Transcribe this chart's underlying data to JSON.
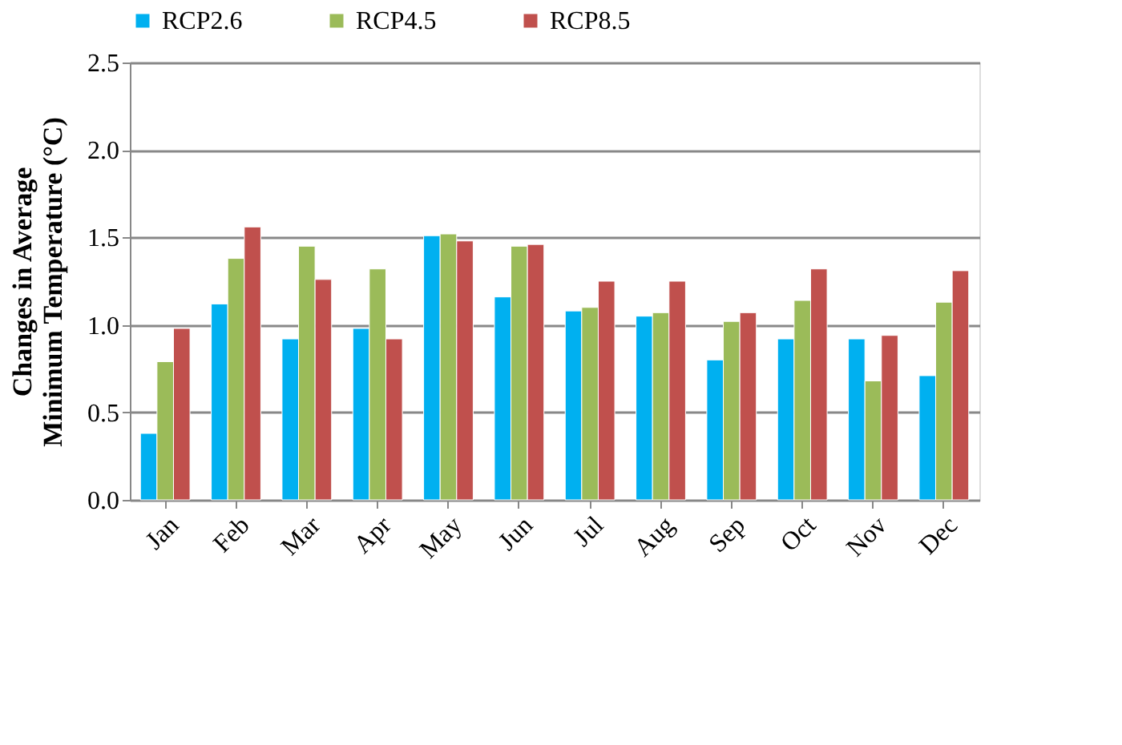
{
  "chart_data": {
    "type": "bar",
    "ylabel": "Changes in Average\nMinimum Temperature (°C)",
    "categories": [
      "Jan",
      "Feb",
      "Mar",
      "Apr",
      "May",
      "Jun",
      "Jul",
      "Aug",
      "Sep",
      "Oct",
      "Nov",
      "Dec"
    ],
    "series": [
      {
        "name": "RCP2.6",
        "color": "#00b0f0",
        "values": [
          0.38,
          1.12,
          0.92,
          0.98,
          1.51,
          1.16,
          1.08,
          1.05,
          0.8,
          0.92,
          0.92,
          0.71
        ]
      },
      {
        "name": "RCP4.5",
        "color": "#9bbb59",
        "values": [
          0.79,
          1.38,
          1.45,
          1.32,
          1.52,
          1.45,
          1.1,
          1.07,
          1.02,
          1.14,
          0.68,
          1.13
        ]
      },
      {
        "name": "RCP8.5",
        "color": "#c0504d",
        "values": [
          0.98,
          1.56,
          1.26,
          0.92,
          1.48,
          1.46,
          1.25,
          1.25,
          1.07,
          1.32,
          0.94,
          1.31
        ]
      }
    ],
    "ylim": [
      0,
      2.5
    ],
    "yticks": [
      {
        "value": 0,
        "label": "0.0"
      },
      {
        "value": 0.5,
        "label": "0.5"
      },
      {
        "value": 1,
        "label": "1.0"
      },
      {
        "value": 1.5,
        "label": "1.5"
      },
      {
        "value": 2,
        "label": "2.0"
      },
      {
        "value": 2.5,
        "label": "2.5"
      }
    ],
    "grid": "y",
    "legend": "top"
  }
}
